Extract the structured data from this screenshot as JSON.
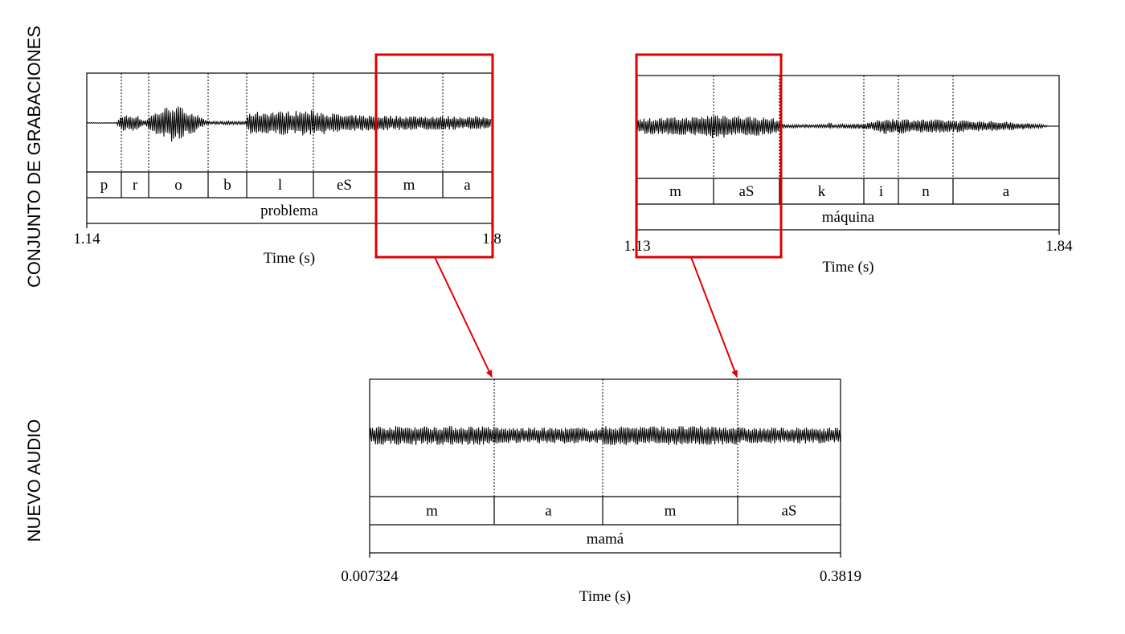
{
  "side_labels": [
    "CONJUNTO DE GRABACIONES",
    "NUEVO AUDIO"
  ],
  "panels": [
    {
      "segments": [
        "p",
        "r",
        "o",
        "b",
        "l",
        "eS",
        "m",
        "a"
      ],
      "word": "problema",
      "time_start": 1.14,
      "time_end": 1.8,
      "axis_label": "Time (s)"
    },
    {
      "segments": [
        "m",
        "aS",
        "k",
        "i",
        "n",
        "a"
      ],
      "word": "máquina",
      "time_start": 1.13,
      "time_end": 1.84,
      "axis_label": "Time (s)"
    },
    {
      "segments": [
        "m",
        "a",
        "m",
        "aS"
      ],
      "word": "mamá",
      "time_start": 0.007324,
      "time_end": 0.3819,
      "axis_label": "Time (s)"
    }
  ]
}
